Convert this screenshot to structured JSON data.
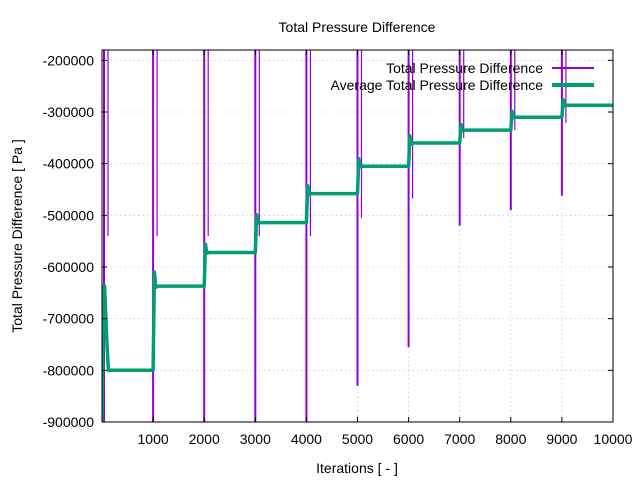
{
  "chart_data": {
    "type": "line",
    "title": "Total Pressure Difference",
    "xlabel": "Iterations [ - ]",
    "ylabel": "Total Pressure Difference [ Pa ]",
    "xlim": [
      0,
      10000
    ],
    "ylim": [
      -900000,
      -180000
    ],
    "x_ticks": [
      1000,
      2000,
      3000,
      4000,
      5000,
      6000,
      7000,
      8000,
      9000,
      10000
    ],
    "x_tick_labels": [
      "1000",
      "2000",
      "3000",
      "4000",
      "5000",
      "6000",
      "7000",
      "8000",
      "9000",
      "10000"
    ],
    "y_ticks": [
      -200000,
      -300000,
      -400000,
      -500000,
      -600000,
      -700000,
      -800000,
      -900000
    ],
    "y_tick_labels": [
      "-200000",
      "-300000",
      "-400000",
      "-500000",
      "-600000",
      "-700000",
      "-800000",
      "-900000"
    ],
    "grid": true,
    "legend_position": "top-right",
    "series": [
      {
        "name": "Total Pressure Difference",
        "color": "#9400d3",
        "levels": [
          -800000,
          -637000,
          -572000,
          -514000,
          -458000,
          -405000,
          -360000,
          -335000,
          -310000,
          -287000
        ],
        "restart_spikes": [
          {
            "x": 0,
            "low": -900000,
            "high": -180000
          },
          {
            "x": 1000,
            "low": -900000,
            "high": -180000
          },
          {
            "x": 2000,
            "low": -900000,
            "high": -180000
          },
          {
            "x": 3000,
            "low": -900000,
            "high": -180000
          },
          {
            "x": 4000,
            "low": -900000,
            "high": -180000
          },
          {
            "x": 5000,
            "low": -830000,
            "high": -180000
          },
          {
            "x": 6000,
            "low": -755000,
            "high": -180000
          },
          {
            "x": 7000,
            "low": -520000,
            "high": -180000
          },
          {
            "x": 8000,
            "low": -490000,
            "high": -180000
          },
          {
            "x": 9000,
            "low": -462000,
            "high": -180000
          }
        ]
      },
      {
        "name": "Average Total Pressure Difference",
        "color": "#009e73",
        "levels": [
          -800000,
          -637000,
          -572000,
          -514000,
          -458000,
          -405000,
          -360000,
          -335000,
          -310000,
          -287000
        ]
      }
    ]
  }
}
